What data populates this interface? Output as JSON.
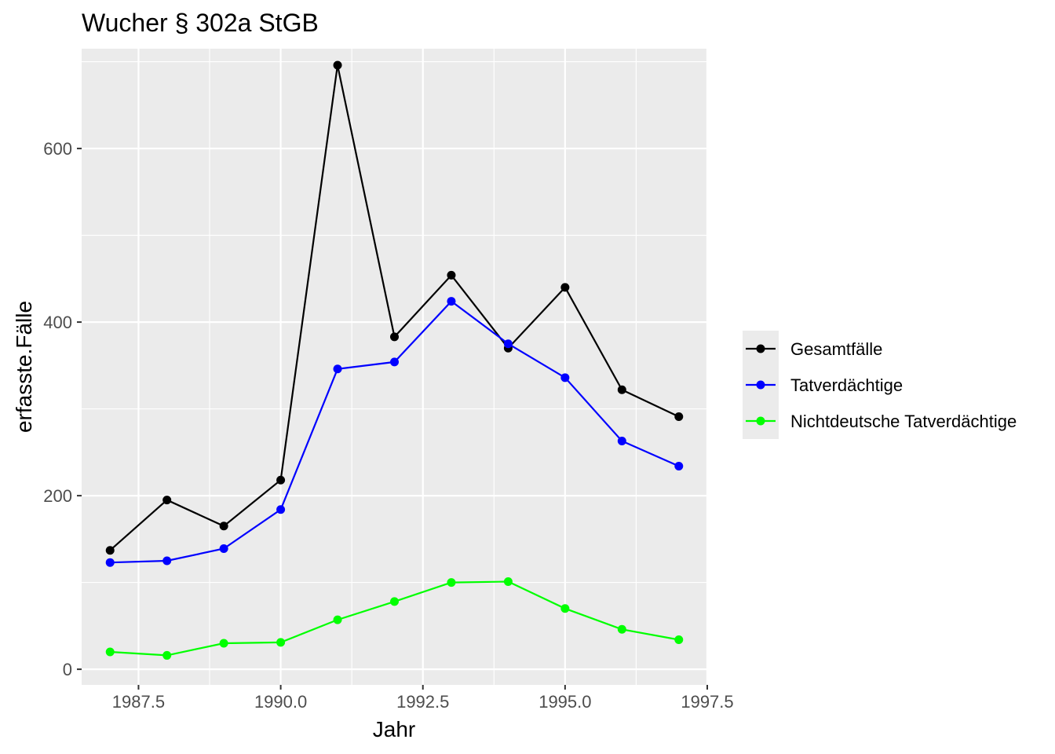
{
  "chart_data": {
    "type": "line",
    "title": "Wucher § 302a StGB",
    "xlabel": "Jahr",
    "ylabel": "erfasste.Fälle",
    "x": [
      1987,
      1988,
      1989,
      1990,
      1991,
      1992,
      1993,
      1994,
      1995,
      1996,
      1997
    ],
    "xlim": [
      1986.5,
      1997.5
    ],
    "ylim": [
      -18,
      715
    ],
    "x_ticks": [
      1987.5,
      1990.0,
      1992.5,
      1995.0,
      1997.5
    ],
    "x_tick_labels": [
      "1987.5",
      "1990.0",
      "1992.5",
      "1995.0",
      "1997.5"
    ],
    "y_ticks": [
      0,
      200,
      400,
      600
    ],
    "y_tick_labels": [
      "0",
      "200",
      "400",
      "600"
    ],
    "grid": true,
    "legend_position": "right",
    "series": [
      {
        "name": "Gesamtfälle",
        "color": "#000000",
        "values": [
          137,
          195,
          165,
          218,
          696,
          383,
          454,
          370,
          440,
          322,
          291
        ]
      },
      {
        "name": "Tatverdächtige",
        "color": "#0000ff",
        "values": [
          123,
          125,
          139,
          184,
          346,
          354,
          424,
          375,
          336,
          263,
          234
        ]
      },
      {
        "name": "Nichtdeutsche Tatverdächtige",
        "color": "#00ff00",
        "values": [
          20,
          16,
          30,
          31,
          57,
          78,
          100,
          101,
          70,
          46,
          34
        ]
      }
    ]
  }
}
